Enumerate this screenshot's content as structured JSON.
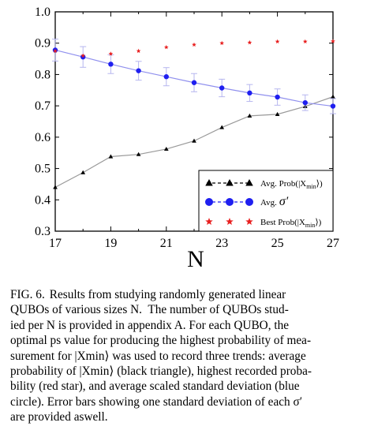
{
  "chart_data": {
    "type": "line",
    "xlabel": "N",
    "ylabel": "",
    "xlim": [
      17,
      27
    ],
    "ylim": [
      0.3,
      1.0
    ],
    "xticks": [
      17,
      19,
      21,
      23,
      25,
      27
    ],
    "yticks": [
      0.3,
      0.4,
      0.5,
      0.6,
      0.7,
      0.8,
      0.9,
      1.0
    ],
    "ytick_labels": [
      "0.3",
      "0.4",
      "0.5",
      "0.6",
      "0.7",
      "0.8",
      "0.9",
      "1.0"
    ],
    "x": [
      17,
      18,
      19,
      20,
      21,
      22,
      23,
      24,
      25,
      26,
      27
    ],
    "series": [
      {
        "name": "Avg. Prob(|X_min⟩)",
        "legend_label": "Avg. Prob(|X",
        "legend_sub": "min",
        "legend_suffix": "⟩)",
        "marker": "triangle",
        "color": "#000000",
        "line_color": "#999999",
        "values": [
          0.44,
          0.487,
          0.538,
          0.545,
          0.562,
          0.588,
          0.631,
          0.668,
          0.673,
          0.698,
          0.729
        ]
      },
      {
        "name": "Avg. σ′",
        "legend_label": "Avg.",
        "legend_symbol": "σ′",
        "marker": "circle",
        "color": "#1f1ff0",
        "line_color": "#9090ee",
        "values": [
          0.878,
          0.856,
          0.833,
          0.812,
          0.793,
          0.774,
          0.757,
          0.741,
          0.728,
          0.71,
          0.699
        ],
        "errors": [
          0.035,
          0.033,
          0.03,
          0.03,
          0.029,
          0.029,
          0.028,
          0.027,
          0.026,
          0.025,
          0.024
        ]
      },
      {
        "name": "Best Prob(|X_min⟩)",
        "legend_label": "Best Prob(|X",
        "legend_sub": "min",
        "legend_suffix": "⟩)",
        "marker": "star",
        "color": "#e82020",
        "values": [
          0.875,
          0.86,
          0.866,
          0.875,
          0.887,
          0.895,
          0.9,
          0.902,
          0.905,
          0.905,
          0.906
        ]
      }
    ],
    "grid": false,
    "legend_position": "bottom-right"
  },
  "caption": {
    "label": "FIG. 6.",
    "lines": [
      "Results from studying randomly generated linear",
      "QUBOs of various sizes N.  The number of QUBOs stud-",
      "ied per N is provided in appendix A. For each QUBO, the",
      "optimal ps value for producing the highest probability of mea-",
      "surement for |Xmin⟩ was used to record three trends: average",
      "probability of |Xmin⟩ (black triangle), highest recorded proba-",
      "bility (red star), and average scaled standard deviation (blue",
      "circle). Error bars showing one standard deviation of each σ′",
      "are provided aswell."
    ]
  }
}
